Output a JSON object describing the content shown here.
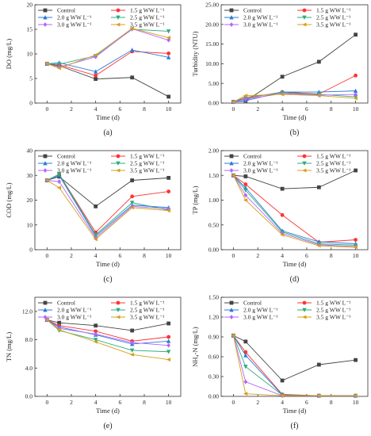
{
  "colors": [
    "#444444",
    "#ff3333",
    "#2a7bd6",
    "#2eab7f",
    "#b266ff",
    "#d6a019"
  ],
  "markers": [
    "square",
    "circle",
    "triangle-up",
    "triangle-down",
    "diamond",
    "triangle-left"
  ],
  "chart_data": [
    {
      "type": "line",
      "caption": "(a)",
      "xlabel": "Time (d)",
      "ylabel": "DO (mg/L)",
      "x": [
        0,
        1,
        4,
        7,
        10
      ],
      "xticks": [
        0,
        2,
        4,
        6,
        8,
        10
      ],
      "ylim": [
        0,
        20
      ],
      "yticks": [
        "0",
        "5",
        "10",
        "15",
        "20"
      ],
      "series": [
        {
          "name": "Control",
          "values": [
            8.0,
            7.6,
            4.9,
            5.2,
            1.3
          ]
        },
        {
          "name": "1.5 g WW L⁻¹",
          "values": [
            8.0,
            7.8,
            5.6,
            10.5,
            10.1
          ]
        },
        {
          "name": "2.0 g WW L⁻¹",
          "values": [
            8.0,
            8.2,
            6.4,
            10.8,
            9.3
          ]
        },
        {
          "name": "2.5 g WW L⁻¹",
          "values": [
            8.0,
            7.9,
            9.6,
            15.0,
            14.6
          ]
        },
        {
          "name": "3.0 g WW L⁻¹",
          "values": [
            8.0,
            7.3,
            9.4,
            15.1,
            12.8
          ]
        },
        {
          "name": "3.5 g WW L⁻¹",
          "values": [
            8.0,
            7.1,
            9.8,
            15.2,
            13.3
          ]
        }
      ]
    },
    {
      "type": "line",
      "caption": "(b)",
      "xlabel": "Time (d)",
      "ylabel": "Turbidity (NTU)",
      "x": [
        0,
        1,
        4,
        7,
        10
      ],
      "xticks": [
        0,
        2,
        4,
        6,
        8,
        10
      ],
      "ylim": [
        0,
        25
      ],
      "yticks": [
        "0.00",
        "5.00",
        "10.00",
        "15.00",
        "20.00",
        "25.00"
      ],
      "series": [
        {
          "name": "Control",
          "values": [
            0.3,
            0.5,
            6.7,
            10.5,
            17.4
          ]
        },
        {
          "name": "1.5 g WW L⁻¹",
          "values": [
            0.3,
            1.2,
            2.8,
            2.3,
            7.0
          ]
        },
        {
          "name": "2.0 g WW L⁻¹",
          "values": [
            0.3,
            0.6,
            2.8,
            2.8,
            3.1
          ]
        },
        {
          "name": "2.5 g WW L⁻¹",
          "values": [
            0.3,
            1.5,
            2.6,
            2.2,
            1.6
          ]
        },
        {
          "name": "3.0 g WW L⁻¹",
          "values": [
            0.3,
            1.0,
            2.4,
            2.0,
            2.2
          ]
        },
        {
          "name": "3.5 g WW L⁻¹",
          "values": [
            0.3,
            1.9,
            2.2,
            1.9,
            1.2
          ]
        }
      ]
    },
    {
      "type": "line",
      "caption": "(c)",
      "xlabel": "Time (d)",
      "ylabel": "COD (mg/L)",
      "x": [
        0,
        1,
        4,
        7,
        10
      ],
      "xticks": [
        0,
        2,
        4,
        6,
        8,
        10
      ],
      "ylim": [
        0,
        40
      ],
      "yticks": [
        "0",
        "10",
        "20",
        "30",
        "40"
      ],
      "series": [
        {
          "name": "Control",
          "values": [
            28.0,
            29.5,
            17.5,
            28.0,
            29.0
          ]
        },
        {
          "name": "1.5 g WW L⁻¹",
          "values": [
            28.0,
            30.5,
            7.0,
            21.5,
            23.5
          ]
        },
        {
          "name": "2.0 g WW L⁻¹",
          "values": [
            28.0,
            30.0,
            5.5,
            18.0,
            17.0
          ]
        },
        {
          "name": "2.5 g WW L⁻¹",
          "values": [
            28.0,
            30.5,
            6.0,
            19.0,
            16.0
          ]
        },
        {
          "name": "3.0 g WW L⁻¹",
          "values": [
            28.0,
            27.5,
            4.8,
            17.5,
            16.5
          ]
        },
        {
          "name": "3.5 g WW L⁻¹",
          "values": [
            28.0,
            25.0,
            4.2,
            17.0,
            15.8
          ]
        }
      ]
    },
    {
      "type": "line",
      "caption": "(d)",
      "xlabel": "Time (d)",
      "ylabel": "TP (mg/L)",
      "x": [
        0,
        1,
        4,
        7,
        10
      ],
      "xticks": [
        0,
        2,
        4,
        6,
        8,
        10
      ],
      "ylim": [
        0,
        2.0
      ],
      "yticks": [
        "0.00",
        "0.50",
        "1.00",
        "1.50",
        "2.00"
      ],
      "series": [
        {
          "name": "Control",
          "values": [
            1.5,
            1.48,
            1.23,
            1.26,
            1.6
          ]
        },
        {
          "name": "1.5 g WW L⁻¹",
          "values": [
            1.5,
            1.32,
            0.7,
            0.15,
            0.2
          ]
        },
        {
          "name": "2.0 g WW L⁻¹",
          "values": [
            1.5,
            1.25,
            0.38,
            0.16,
            0.12
          ]
        },
        {
          "name": "2.5 g WW L⁻¹",
          "values": [
            1.5,
            1.2,
            0.36,
            0.12,
            0.09
          ]
        },
        {
          "name": "3.0 g WW L⁻¹",
          "values": [
            1.5,
            1.1,
            0.33,
            0.1,
            0.06
          ]
        },
        {
          "name": "3.5 g WW L⁻¹",
          "values": [
            1.5,
            1.0,
            0.3,
            0.08,
            0.05
          ]
        }
      ]
    },
    {
      "type": "line",
      "caption": "(e)",
      "xlabel": "Time (d)",
      "ylabel": "TN (mg/L)",
      "x": [
        0,
        1,
        4,
        7,
        10
      ],
      "xticks": [
        0,
        2,
        4,
        6,
        8,
        10
      ],
      "ylim": [
        0,
        14
      ],
      "yticks": [
        "0.0",
        "4.0",
        "8.0",
        "12.0"
      ],
      "series": [
        {
          "name": "Control",
          "values": [
            10.8,
            10.4,
            10.0,
            9.3,
            10.3
          ]
        },
        {
          "name": "1.5 g WW L⁻¹",
          "values": [
            10.8,
            10.0,
            9.2,
            7.8,
            8.4
          ]
        },
        {
          "name": "2.0 g WW L⁻¹",
          "values": [
            10.8,
            9.8,
            8.7,
            7.4,
            7.8
          ]
        },
        {
          "name": "2.5 g WW L⁻¹",
          "values": [
            10.8,
            9.3,
            8.0,
            6.5,
            6.3
          ]
        },
        {
          "name": "3.0 g WW L⁻¹",
          "values": [
            10.8,
            9.6,
            8.8,
            7.6,
            7.2
          ]
        },
        {
          "name": "3.5 g WW L⁻¹",
          "values": [
            10.8,
            9.4,
            7.7,
            5.9,
            5.2
          ]
        }
      ]
    },
    {
      "type": "line",
      "caption": "(f)",
      "xlabel": "Time (d)",
      "ylabel": "NH₄-N (mg/L)",
      "x": [
        0,
        1,
        4,
        7,
        10
      ],
      "xticks": [
        0,
        2,
        4,
        6,
        8,
        10
      ],
      "ylim": [
        0,
        1.5
      ],
      "yticks": [
        "0.00",
        "0.30",
        "0.60",
        "0.90",
        "1.20",
        "1.50"
      ],
      "series": [
        {
          "name": "Control",
          "values": [
            0.92,
            0.83,
            0.24,
            0.48,
            0.55
          ]
        },
        {
          "name": "1.5 g WW L⁻¹",
          "values": [
            0.92,
            0.67,
            0.03,
            0.01,
            0.01
          ]
        },
        {
          "name": "2.0 g WW L⁻¹",
          "values": [
            0.92,
            0.62,
            0.02,
            0.01,
            0.01
          ]
        },
        {
          "name": "2.5 g WW L⁻¹",
          "values": [
            0.92,
            0.45,
            0.02,
            0.01,
            0.01
          ]
        },
        {
          "name": "3.0 g WW L⁻¹",
          "values": [
            0.92,
            0.22,
            0.01,
            0.01,
            0.01
          ]
        },
        {
          "name": "3.5 g WW L⁻¹",
          "values": [
            0.92,
            0.04,
            0.01,
            0.01,
            0.01
          ]
        }
      ]
    }
  ]
}
